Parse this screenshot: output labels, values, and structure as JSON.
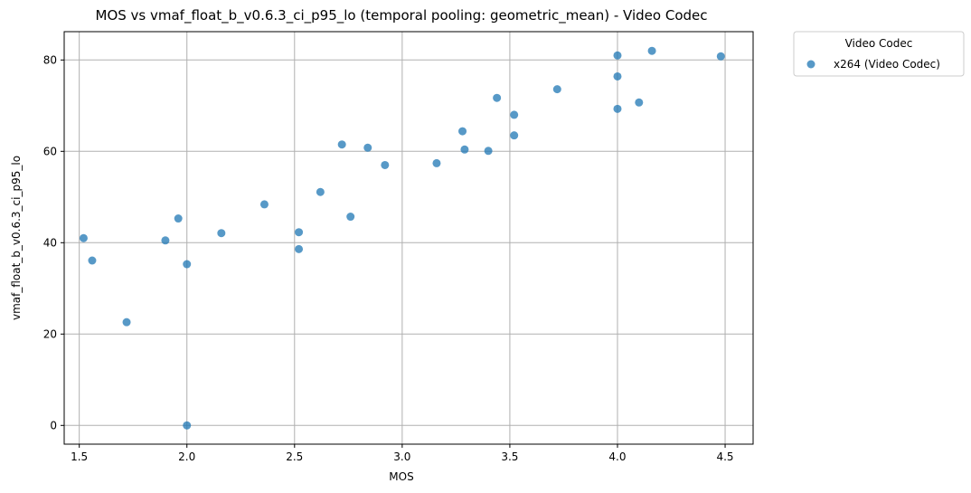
{
  "chart_data": {
    "type": "scatter",
    "title": "MOS vs vmaf_float_b_v0.6.3_ci_p95_lo (temporal pooling: geometric_mean) - Video Codec",
    "xlabel": "MOS",
    "ylabel": "vmaf_float_b_v0.6.3_ci_p95_lo",
    "xlim": [
      1.43,
      4.63
    ],
    "ylim": [
      -4.1,
      86.2
    ],
    "xticks": [
      1.5,
      2.0,
      2.5,
      3.0,
      3.5,
      4.0,
      4.5
    ],
    "xtick_labels": [
      "1.5",
      "2.0",
      "2.5",
      "3.0",
      "3.5",
      "4.0",
      "4.5"
    ],
    "yticks": [
      0,
      20,
      40,
      60,
      80
    ],
    "ytick_labels": [
      "0",
      "20",
      "40",
      "60",
      "80"
    ],
    "grid": true,
    "legend": {
      "title": "Video Codec",
      "placement": "outside-top-right"
    },
    "series": [
      {
        "name": "x264 (Video Codec)",
        "color": "#1f77b4",
        "points": [
          {
            "x": 1.52,
            "y": 41.0
          },
          {
            "x": 1.56,
            "y": 36.1
          },
          {
            "x": 1.72,
            "y": 22.6
          },
          {
            "x": 1.9,
            "y": 40.5
          },
          {
            "x": 1.96,
            "y": 45.3
          },
          {
            "x": 2.0,
            "y": 35.3
          },
          {
            "x": 2.0,
            "y": 0.0
          },
          {
            "x": 2.16,
            "y": 42.1
          },
          {
            "x": 2.36,
            "y": 48.4
          },
          {
            "x": 2.52,
            "y": 42.3
          },
          {
            "x": 2.52,
            "y": 38.6
          },
          {
            "x": 2.62,
            "y": 51.1
          },
          {
            "x": 2.72,
            "y": 61.5
          },
          {
            "x": 2.76,
            "y": 45.7
          },
          {
            "x": 2.84,
            "y": 60.8
          },
          {
            "x": 2.92,
            "y": 57.0
          },
          {
            "x": 3.16,
            "y": 57.4
          },
          {
            "x": 3.28,
            "y": 64.4
          },
          {
            "x": 3.29,
            "y": 60.4
          },
          {
            "x": 3.4,
            "y": 60.1
          },
          {
            "x": 3.44,
            "y": 71.7
          },
          {
            "x": 3.52,
            "y": 68.0
          },
          {
            "x": 3.52,
            "y": 63.5
          },
          {
            "x": 3.72,
            "y": 73.6
          },
          {
            "x": 4.0,
            "y": 81.0
          },
          {
            "x": 4.0,
            "y": 76.4
          },
          {
            "x": 4.0,
            "y": 69.3
          },
          {
            "x": 4.1,
            "y": 70.7
          },
          {
            "x": 4.16,
            "y": 82.0
          },
          {
            "x": 4.48,
            "y": 80.8
          }
        ]
      }
    ]
  }
}
